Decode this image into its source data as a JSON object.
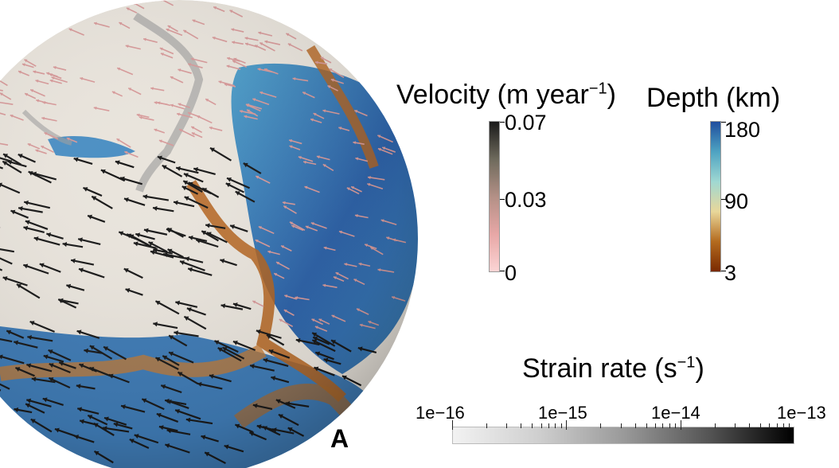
{
  "velocity": {
    "title": "Velocity (m year",
    "title_sup": "−1",
    "title_close": ")",
    "ticks": [
      "0.07",
      "0.03",
      "0"
    ],
    "colors": [
      "#fbd4d4",
      "#e7a7a6",
      "#b39086",
      "#6e6a5c",
      "#1a1a1a"
    ]
  },
  "depth": {
    "title": "Depth (km)",
    "ticks": [
      "180",
      "90",
      "3"
    ],
    "colors": [
      "#7a2a00",
      "#b46b1f",
      "#e9d79a",
      "#9fd8d2",
      "#4ea3c2",
      "#1f4e9e"
    ]
  },
  "strain": {
    "title": "Strain rate (s",
    "title_sup": "−1",
    "title_close": ")",
    "ticks": [
      "1e−16",
      "1e−15",
      "1e−14",
      "1e−13"
    ]
  },
  "panel_label": "A",
  "palette": {
    "plate": "#ece7df",
    "ocean_deep": "#2e64ab",
    "ocean_mid": "#5ea9c9",
    "ridge": "#b4641f",
    "arrow_dark": "#1a1a1a",
    "arrow_light": "#d79a9a"
  }
}
